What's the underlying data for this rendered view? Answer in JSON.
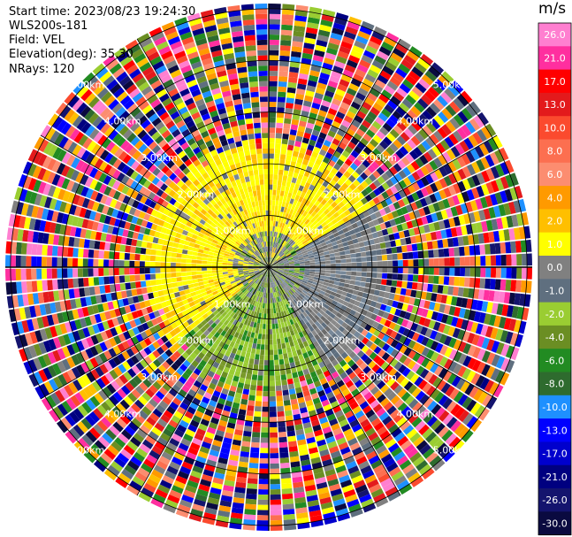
{
  "info": {
    "start_time": "Start time: 2023/08/23 19:24:30",
    "station": "WLS200s-181",
    "field": "Field: VEL",
    "elevation": "Elevation(deg): 35.30",
    "nrays": "NRays: 120"
  },
  "colorbar": {
    "unit": "m/s",
    "labels": [
      "26.0",
      "21.0",
      "17.0",
      "13.0",
      "10.0",
      "8.0",
      "6.0",
      "4.0",
      "2.0",
      "1.0",
      "0.0",
      "-1.0",
      "-2.0",
      "-4.0",
      "-6.0",
      "-8.0",
      "-10.0",
      "-13.0",
      "-17.0",
      "-21.0",
      "-26.0",
      "-30.0"
    ],
    "colors": [
      "#ff7fd0",
      "#ff2f9f",
      "#ff0000",
      "#e31a1c",
      "#fb4a2e",
      "#fc6f50",
      "#fc8d70",
      "#ff9a00",
      "#ffbf00",
      "#ffff00",
      "#808080",
      "#5f6f7f",
      "#9acd32",
      "#6b8e23",
      "#228b22",
      "#2e6b2e",
      "#1e90ff",
      "#0000ff",
      "#0000cd",
      "#000080",
      "#14146e",
      "#0a0a40"
    ]
  },
  "chart_data": {
    "type": "ppi",
    "field": "VEL",
    "units": "m/s",
    "nrays": 120,
    "elevation_deg": 35.3,
    "range_labels": [
      "1.00km",
      "2.00km",
      "3.00km",
      "4.00km",
      "5.00km"
    ],
    "range_rings_km": [
      1,
      2,
      3,
      4,
      5
    ],
    "max_range_km": 5.1,
    "velocity_regions": [
      {
        "region": "north and west, inner 2.3 km",
        "dominant": "yellow (1.0 to 2.0 m/s)"
      },
      {
        "region": "east, inner 2.5 km",
        "dominant": "gray (0.0 to -1.0 m/s)"
      },
      {
        "region": "south, inner 2.2 km",
        "dominant": "olive green (-2.0 to -6.0 m/s)"
      },
      {
        "region": "beyond about 2.3 km",
        "dominant": "noise, all colors"
      }
    ]
  }
}
